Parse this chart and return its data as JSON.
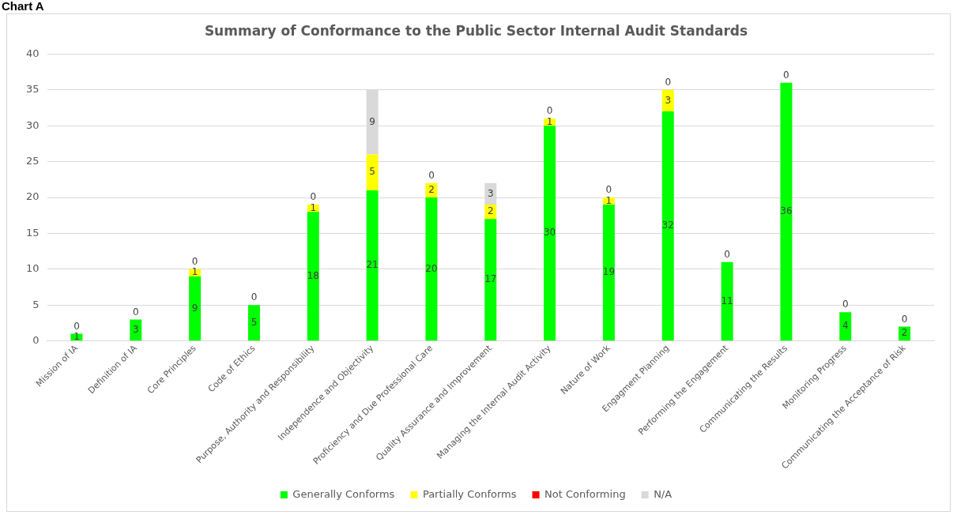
{
  "chart_data": {
    "type": "bar",
    "title": "Summary of Conformance to the Public Sector Internal Audit Standards",
    "annotations": [
      "Chart A"
    ],
    "categories": [
      "Mission of IA",
      "Definition of IA",
      "Core Principles",
      "Code of Ethics",
      "Purpose, Authority and Responsibility",
      "Independence and Objectivity",
      "Proficiency and Due Professional Care",
      "Quality Assurance and Improvement",
      "Managing the Internal Audit Activity",
      "Nature of Work",
      "Engagment Planning",
      "Performing the Engagement",
      "Communicating the Results",
      "Monitoring Progress",
      "Communicating the Acceptance of Risk"
    ],
    "series": [
      {
        "name": "Generally Conforms",
        "color": "#00ff00",
        "values": [
          1,
          3,
          9,
          5,
          18,
          21,
          20,
          17,
          30,
          19,
          32,
          11,
          36,
          4,
          2
        ],
        "value_labels": [
          "1",
          "3",
          "9",
          "5",
          "18",
          "21",
          "20",
          "17",
          "30",
          "19",
          "32",
          "11",
          "36",
          "4",
          "2"
        ]
      },
      {
        "name": "Partially Conforms",
        "color": "#ffff00",
        "values": [
          0,
          0,
          1,
          0,
          1,
          5,
          2,
          2,
          1,
          1,
          3,
          0,
          0,
          0,
          0
        ],
        "value_labels": [
          null,
          null,
          "1",
          null,
          "1",
          "5",
          "2",
          "2",
          "1",
          "1",
          "3",
          null,
          null,
          null,
          null
        ]
      },
      {
        "name": "Not Conforming",
        "color": "#ff0000",
        "values": [
          0,
          0,
          0,
          0,
          0,
          0,
          0,
          0,
          0,
          0,
          0,
          0,
          0,
          0,
          0
        ],
        "value_labels": [
          "0",
          "0",
          "0",
          "0",
          "0",
          null,
          "0",
          null,
          "0",
          "0",
          "0",
          "0",
          "0",
          "0",
          "0"
        ]
      },
      {
        "name": "N/A",
        "color": "#d9d9d9",
        "values": [
          0,
          0,
          0,
          0,
          0,
          9,
          0,
          3,
          0,
          0,
          0,
          0,
          0,
          0,
          0
        ],
        "value_labels": [
          null,
          null,
          null,
          null,
          null,
          "9",
          null,
          "3",
          null,
          null,
          null,
          null,
          null,
          null,
          null
        ]
      }
    ],
    "stacked": true,
    "ylim": [
      0,
      40
    ],
    "yticks": [
      0,
      5,
      10,
      15,
      20,
      25,
      30,
      35,
      40
    ],
    "grid": "y",
    "legend": "bottom"
  }
}
